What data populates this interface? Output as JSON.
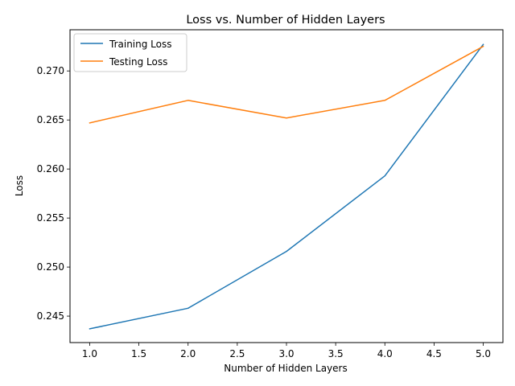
{
  "chart_data": {
    "type": "line",
    "title": "Loss vs. Number of Hidden Layers",
    "xlabel": "Number of Hidden Layers",
    "ylabel": "Loss",
    "x": [
      1,
      2,
      3,
      4,
      5
    ],
    "series": [
      {
        "name": "Training Loss",
        "color": "#1f77b4",
        "values": [
          0.2437,
          0.2458,
          0.2516,
          0.2593,
          0.2727
        ]
      },
      {
        "name": "Testing Loss",
        "color": "#ff7f0e",
        "values": [
          0.2647,
          0.267,
          0.2652,
          0.267,
          0.2725
        ]
      }
    ],
    "xlim": [
      0.8,
      5.2
    ],
    "ylim": [
      0.2423,
      0.2742
    ],
    "xticks": [
      1.0,
      1.5,
      2.0,
      2.5,
      3.0,
      3.5,
      4.0,
      4.5,
      5.0
    ],
    "xtick_labels": [
      "1.0",
      "1.5",
      "2.0",
      "2.5",
      "3.0",
      "3.5",
      "4.0",
      "4.5",
      "5.0"
    ],
    "yticks": [
      0.245,
      0.25,
      0.255,
      0.26,
      0.265,
      0.27
    ],
    "ytick_labels": [
      "0.245",
      "0.250",
      "0.255",
      "0.260",
      "0.265",
      "0.270"
    ],
    "grid": false,
    "legend_position": "top-left"
  }
}
